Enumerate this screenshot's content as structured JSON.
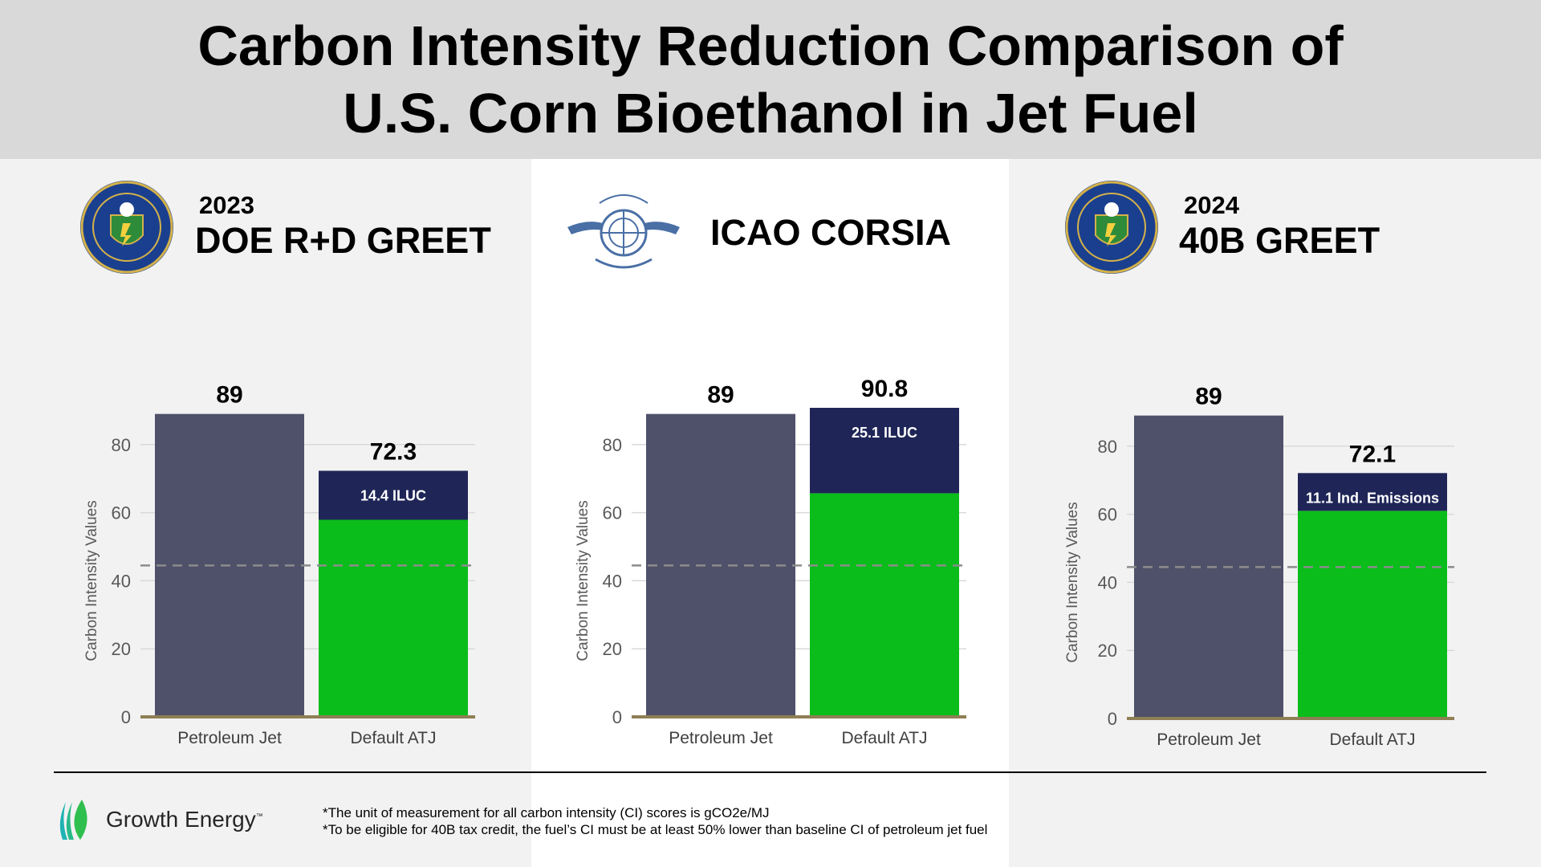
{
  "title": {
    "line1": "Carbon Intensity Reduction Comparison of",
    "line2": "U.S. Corn Bioethanol in Jet Fuel"
  },
  "panels": [
    {
      "year": "2023",
      "name": "DOE R+D GREET",
      "logo": "doe-seal-icon"
    },
    {
      "year": "",
      "name": "ICAO CORSIA",
      "logo": "icao-emblem-icon"
    },
    {
      "year": "2024",
      "name": "40B GREET",
      "logo": "doe-seal-icon"
    }
  ],
  "colors": {
    "petroleum": "#4f5069",
    "base": "#0abd1a",
    "emissions_segment": "#1f2657",
    "threshold": "#8c8c8c",
    "axis": "#8f7f55"
  },
  "chart_data": [
    {
      "type": "bar",
      "stacked": true,
      "categories": [
        "Petroleum Jet",
        "Default ATJ"
      ],
      "ylabel": "Carbon Intensity Values",
      "ylim": [
        0,
        89
      ],
      "yticks": [
        0,
        20,
        40,
        60,
        80
      ],
      "threshold": 44.5,
      "bars": [
        {
          "category": "Petroleum Jet",
          "total": 89,
          "total_label": "89"
        },
        {
          "category": "Default ATJ",
          "total": 72.3,
          "total_label": "72.3",
          "base": 57.9,
          "segment": 14.4,
          "segment_label": "14.4 ILUC"
        }
      ]
    },
    {
      "type": "bar",
      "stacked": true,
      "categories": [
        "Petroleum Jet",
        "Default ATJ"
      ],
      "ylabel": "Carbon Intensity Values",
      "ylim": [
        0,
        89
      ],
      "yticks": [
        0,
        20,
        40,
        60,
        80
      ],
      "threshold": 44.5,
      "bars": [
        {
          "category": "Petroleum Jet",
          "total": 89,
          "total_label": "89"
        },
        {
          "category": "Default ATJ",
          "total": 90.8,
          "total_label": "90.8",
          "base": 65.7,
          "segment": 25.1,
          "segment_label": "25.1 ILUC"
        }
      ]
    },
    {
      "type": "bar",
      "stacked": true,
      "categories": [
        "Petroleum Jet",
        "Default ATJ"
      ],
      "ylabel": "Carbon Intensity Values",
      "ylim": [
        0,
        89
      ],
      "yticks": [
        0,
        20,
        40,
        60,
        80
      ],
      "threshold": 44.5,
      "bars": [
        {
          "category": "Petroleum Jet",
          "total": 89,
          "total_label": "89"
        },
        {
          "category": "Default ATJ",
          "total": 72.1,
          "total_label": "72.1",
          "base": 61.0,
          "segment": 11.1,
          "segment_label": "11.1 Ind. Emissions"
        }
      ]
    }
  ],
  "footer": {
    "brand": "Growth Energy",
    "brand_tm": "™",
    "note1": "*The unit of measurement for all carbon intensity (CI) scores is gCO2e/MJ",
    "note2": "*To be eligible for 40B tax credit, the fuel’s CI must be at least 50% lower than baseline CI of petroleum jet fuel"
  }
}
